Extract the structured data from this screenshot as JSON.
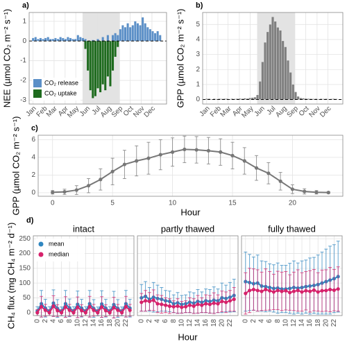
{
  "chart_data": [
    {
      "type": "bar",
      "label": "a)",
      "ylabel": "NEE (µmol CO₂ m⁻² s⁻¹)",
      "x": [
        1,
        8,
        15,
        22,
        29,
        36,
        43,
        50,
        57,
        64,
        71,
        78,
        85,
        92,
        99,
        106,
        113,
        120,
        127,
        134,
        141,
        148,
        155,
        162,
        169,
        176,
        183,
        190,
        197,
        204,
        211,
        218,
        225,
        232,
        239,
        246,
        253,
        260,
        267,
        274,
        281,
        288,
        295,
        302,
        309,
        316,
        323,
        330,
        337,
        344,
        351,
        358
      ],
      "series": [
        {
          "name": "CO₂ release",
          "color": "#5b8fc7",
          "values": [
            0.15,
            0.2,
            0.1,
            0.15,
            0.1,
            0.15,
            0.2,
            0.1,
            0.1,
            0.15,
            0.1,
            0.2,
            0.15,
            0.1,
            0.2,
            0.15,
            0.1,
            0.1,
            0.3,
            0.2,
            0.15,
            0.1,
            null,
            null,
            0.05,
            null,
            0.1,
            null,
            0.2,
            null,
            0.3,
            null,
            0.3,
            0.4,
            0.3,
            0.6,
            0.8,
            0.7,
            0.9,
            0.7,
            0.8,
            1.0,
            0.9,
            0.8,
            1.2,
            0.9,
            0.7,
            0.6,
            0.5,
            0.4,
            0.5,
            0.3
          ]
        },
        {
          "name": "CO₂ uptake",
          "color": "#1e6b1e",
          "values": [
            null,
            null,
            null,
            null,
            null,
            null,
            null,
            null,
            null,
            null,
            null,
            null,
            null,
            null,
            null,
            null,
            null,
            null,
            null,
            null,
            null,
            -0.4,
            -1.5,
            -2.5,
            -2.9,
            -2.8,
            -2.4,
            -2.6,
            -2.2,
            -2.5,
            -1.8,
            -2.3,
            -1.5,
            -0.8,
            -0.3,
            null,
            null,
            null,
            null,
            null,
            null,
            null,
            null,
            null,
            null,
            null,
            null,
            null,
            null,
            null,
            null,
            null
          ]
        }
      ],
      "xlim": [
        -10,
        376
      ],
      "xticks": [
        {
          "value": 1,
          "label": "Jan"
        },
        {
          "value": 32,
          "label": "Feb"
        },
        {
          "value": 60,
          "label": "Mar"
        },
        {
          "value": 91,
          "label": "Apr"
        },
        {
          "value": 121,
          "label": "May"
        },
        {
          "value": 152,
          "label": "Jun"
        },
        {
          "value": 182,
          "label": "Jul"
        },
        {
          "value": 213,
          "label": "Aug"
        },
        {
          "value": 244,
          "label": "Sep"
        },
        {
          "value": 274,
          "label": "Oct"
        },
        {
          "value": 305,
          "label": "Nov"
        },
        {
          "value": 335,
          "label": "Dec"
        }
      ],
      "ylim": [
        -3.2,
        1.45
      ],
      "yticks": [
        -3,
        -2,
        -1,
        0,
        1
      ],
      "shade": [
        140,
        244
      ],
      "zero_line": true,
      "legend": "bottom-left"
    },
    {
      "type": "bar",
      "label": "b)",
      "ylabel": "GPP (µmol CO₂ m⁻² s⁻¹)",
      "x": [
        1,
        8,
        15,
        22,
        29,
        36,
        43,
        50,
        57,
        64,
        71,
        78,
        85,
        92,
        99,
        106,
        113,
        120,
        127,
        134,
        141,
        148,
        155,
        162,
        169,
        176,
        183,
        190,
        197,
        204,
        211,
        218,
        225,
        232,
        239,
        246,
        253,
        260,
        267,
        274,
        281,
        288,
        295,
        302,
        309,
        316,
        323,
        330,
        337,
        344,
        351,
        358
      ],
      "series": [
        {
          "color": "#7f7f7f",
          "values": [
            0.05,
            0.05,
            0.02,
            0.05,
            0.03,
            0.05,
            0.04,
            0.05,
            0.05,
            0.03,
            0.05,
            0.04,
            0.05,
            0.06,
            0.05,
            0.08,
            0.06,
            0.1,
            0.12,
            0.15,
            0.3,
            1.2,
            2.5,
            3.8,
            4.5,
            5.0,
            5.5,
            5.2,
            4.8,
            4.6,
            3.9,
            3.5,
            2.6,
            1.8,
            1.0,
            0.5,
            0.2,
            0.1,
            0.08,
            0.06,
            0.05,
            0.05,
            0.04,
            0.05,
            0.03,
            0.05,
            0.04,
            0.05,
            0.03,
            0.04,
            0.05,
            0.04
          ]
        }
      ],
      "xlim": [
        -10,
        376
      ],
      "xticks": [
        {
          "value": 1,
          "label": "Jan"
        },
        {
          "value": 32,
          "label": "Feb"
        },
        {
          "value": 60,
          "label": "Mar"
        },
        {
          "value": 91,
          "label": "Apr"
        },
        {
          "value": 121,
          "label": "May"
        },
        {
          "value": 152,
          "label": "Jun"
        },
        {
          "value": 182,
          "label": "Jul"
        },
        {
          "value": 213,
          "label": "Aug"
        },
        {
          "value": 244,
          "label": "Sep"
        },
        {
          "value": 274,
          "label": "Oct"
        },
        {
          "value": 305,
          "label": "Nov"
        },
        {
          "value": 335,
          "label": "Dec"
        }
      ],
      "ylim": [
        -0.3,
        5.8
      ],
      "yticks": [
        0,
        1,
        2,
        3,
        4,
        5
      ],
      "shade": [
        140,
        244
      ],
      "zero_line": true
    },
    {
      "type": "line",
      "label": "c)",
      "ylabel": "GPP (µmol CO₂ m⁻² s⁻¹)",
      "xlabel": "Hour",
      "x": [
        0,
        1,
        2,
        3,
        4,
        5,
        6,
        7,
        8,
        9,
        10,
        11,
        12,
        13,
        14,
        15,
        16,
        17,
        18,
        19,
        20,
        21,
        22,
        23
      ],
      "series": [
        {
          "color": "#777777",
          "values": [
            0.05,
            0.1,
            0.3,
            0.8,
            1.5,
            2.4,
            3.2,
            3.6,
            3.9,
            4.3,
            4.6,
            4.9,
            4.85,
            4.75,
            4.6,
            4.2,
            3.6,
            2.8,
            2.2,
            1.3,
            0.4,
            0.15,
            0.05,
            0.02
          ],
          "errors": [
            0.2,
            0.3,
            0.5,
            0.8,
            1.2,
            1.5,
            1.6,
            1.7,
            1.8,
            1.7,
            1.6,
            1.5,
            1.5,
            1.5,
            1.5,
            1.5,
            1.5,
            1.4,
            1.2,
            1.0,
            0.5,
            0.3,
            0.2,
            0.1
          ]
        }
      ],
      "xlim": [
        -1.2,
        24.2
      ],
      "xticks": [
        0,
        5,
        10,
        15,
        20
      ],
      "ylim": [
        -0.4,
        6.5
      ],
      "yticks": [
        0,
        2,
        4,
        6
      ]
    },
    {
      "type": "line",
      "label": "d)",
      "title": "intact",
      "ylabel": "CH₄ flux (mg CH₄ m⁻² d⁻¹)",
      "x": [
        0,
        1,
        2,
        3,
        4,
        5,
        6,
        7,
        8,
        9,
        10,
        11,
        12,
        13,
        14,
        15,
        16,
        17,
        18,
        19,
        20,
        21,
        22,
        23
      ],
      "series": [
        {
          "name": "mean",
          "color": "#2f86c0",
          "values": [
            5,
            30,
            15,
            5,
            32,
            14,
            4,
            30,
            16,
            5,
            28,
            15,
            5,
            30,
            14,
            4,
            29,
            15,
            5,
            27,
            14,
            4,
            30,
            15
          ],
          "errors": [
            15,
            45,
            30,
            15,
            45,
            30,
            15,
            45,
            30,
            15,
            45,
            30,
            15,
            45,
            30,
            15,
            45,
            30,
            15,
            45,
            30,
            15,
            45,
            30
          ]
        },
        {
          "name": "median",
          "color": "#d6226b",
          "values": [
            0,
            20,
            8,
            0,
            22,
            7,
            0,
            19,
            8,
            0,
            18,
            7,
            0,
            20,
            8,
            0,
            19,
            7,
            0,
            17,
            8,
            0,
            20,
            8
          ],
          "errors": [
            10,
            35,
            20,
            10,
            35,
            20,
            10,
            35,
            20,
            10,
            35,
            20,
            10,
            35,
            20,
            10,
            35,
            20,
            10,
            35,
            20,
            10,
            35,
            20
          ]
        }
      ],
      "xlim": [
        -1,
        24
      ],
      "xticks": [
        0,
        2,
        4,
        6,
        8,
        10,
        12,
        14,
        16,
        18,
        20,
        22
      ],
      "ylim": [
        -10,
        260
      ],
      "yticks": [
        0,
        50,
        100,
        150,
        200,
        250
      ],
      "legend": "top-left"
    },
    {
      "type": "line",
      "title": "partly thawed",
      "xlabel": "Hour",
      "x": [
        0,
        1,
        2,
        3,
        4,
        5,
        6,
        7,
        8,
        9,
        10,
        11,
        12,
        13,
        14,
        15,
        16,
        17,
        18,
        19,
        20,
        21,
        22,
        23
      ],
      "series": [
        {
          "color": "#2f86c0",
          "values": [
            50,
            55,
            45,
            52,
            48,
            45,
            40,
            38,
            30,
            33,
            28,
            30,
            35,
            32,
            38,
            35,
            40,
            38,
            42,
            40,
            50,
            48,
            52,
            58
          ],
          "errors": [
            45,
            50,
            40,
            50,
            45,
            40,
            35,
            35,
            30,
            35,
            30,
            30,
            35,
            35,
            40,
            35,
            40,
            40,
            45,
            40,
            50,
            45,
            50,
            55
          ]
        },
        {
          "color": "#d6226b",
          "values": [
            35,
            40,
            38,
            42,
            30,
            28,
            25,
            22,
            20,
            22,
            18,
            20,
            25,
            22,
            28,
            25,
            30,
            28,
            32,
            30,
            38,
            35,
            40,
            45
          ],
          "errors": [
            30,
            35,
            30,
            35,
            30,
            30,
            25,
            25,
            20,
            25,
            20,
            20,
            25,
            25,
            30,
            25,
            30,
            30,
            35,
            30,
            35,
            35,
            35,
            40
          ]
        }
      ],
      "xlim": [
        -1,
        24
      ],
      "xticks": [
        0,
        2,
        4,
        6,
        8,
        10,
        12,
        14,
        16,
        18,
        20,
        22
      ],
      "ylim": [
        -10,
        260
      ]
    },
    {
      "type": "line",
      "title": "fully thawed",
      "x": [
        0,
        1,
        2,
        3,
        4,
        5,
        6,
        7,
        8,
        9,
        10,
        11,
        12,
        13,
        14,
        15,
        16,
        17,
        18,
        19,
        20,
        21,
        22,
        23
      ],
      "series": [
        {
          "color": "#2f86c0",
          "values": [
            105,
            102,
            98,
            100,
            90,
            88,
            85,
            82,
            83,
            80,
            80,
            82,
            85,
            83,
            85,
            88,
            90,
            92,
            95,
            100,
            105,
            110,
            115,
            122
          ],
          "errors": [
            100,
            95,
            90,
            95,
            85,
            85,
            80,
            80,
            85,
            80,
            80,
            85,
            90,
            85,
            90,
            90,
            95,
            95,
            100,
            105,
            110,
            115,
            115,
            120
          ]
        },
        {
          "color": "#d6226b",
          "values": [
            65,
            75,
            78,
            75,
            72,
            78,
            74,
            70,
            75,
            72,
            74,
            68,
            72,
            75,
            70,
            74,
            72,
            76,
            70,
            74,
            75,
            78,
            76,
            80
          ],
          "errors": [
            70,
            75,
            70,
            70,
            65,
            70,
            65,
            60,
            65,
            65,
            65,
            60,
            65,
            70,
            65,
            65,
            70,
            70,
            65,
            70,
            70,
            75,
            70,
            75
          ]
        }
      ],
      "xlim": [
        -1,
        24
      ],
      "xticks": [
        0,
        2,
        4,
        6,
        8,
        10,
        12,
        14,
        16,
        18,
        20,
        22
      ],
      "ylim": [
        -10,
        260
      ]
    }
  ]
}
